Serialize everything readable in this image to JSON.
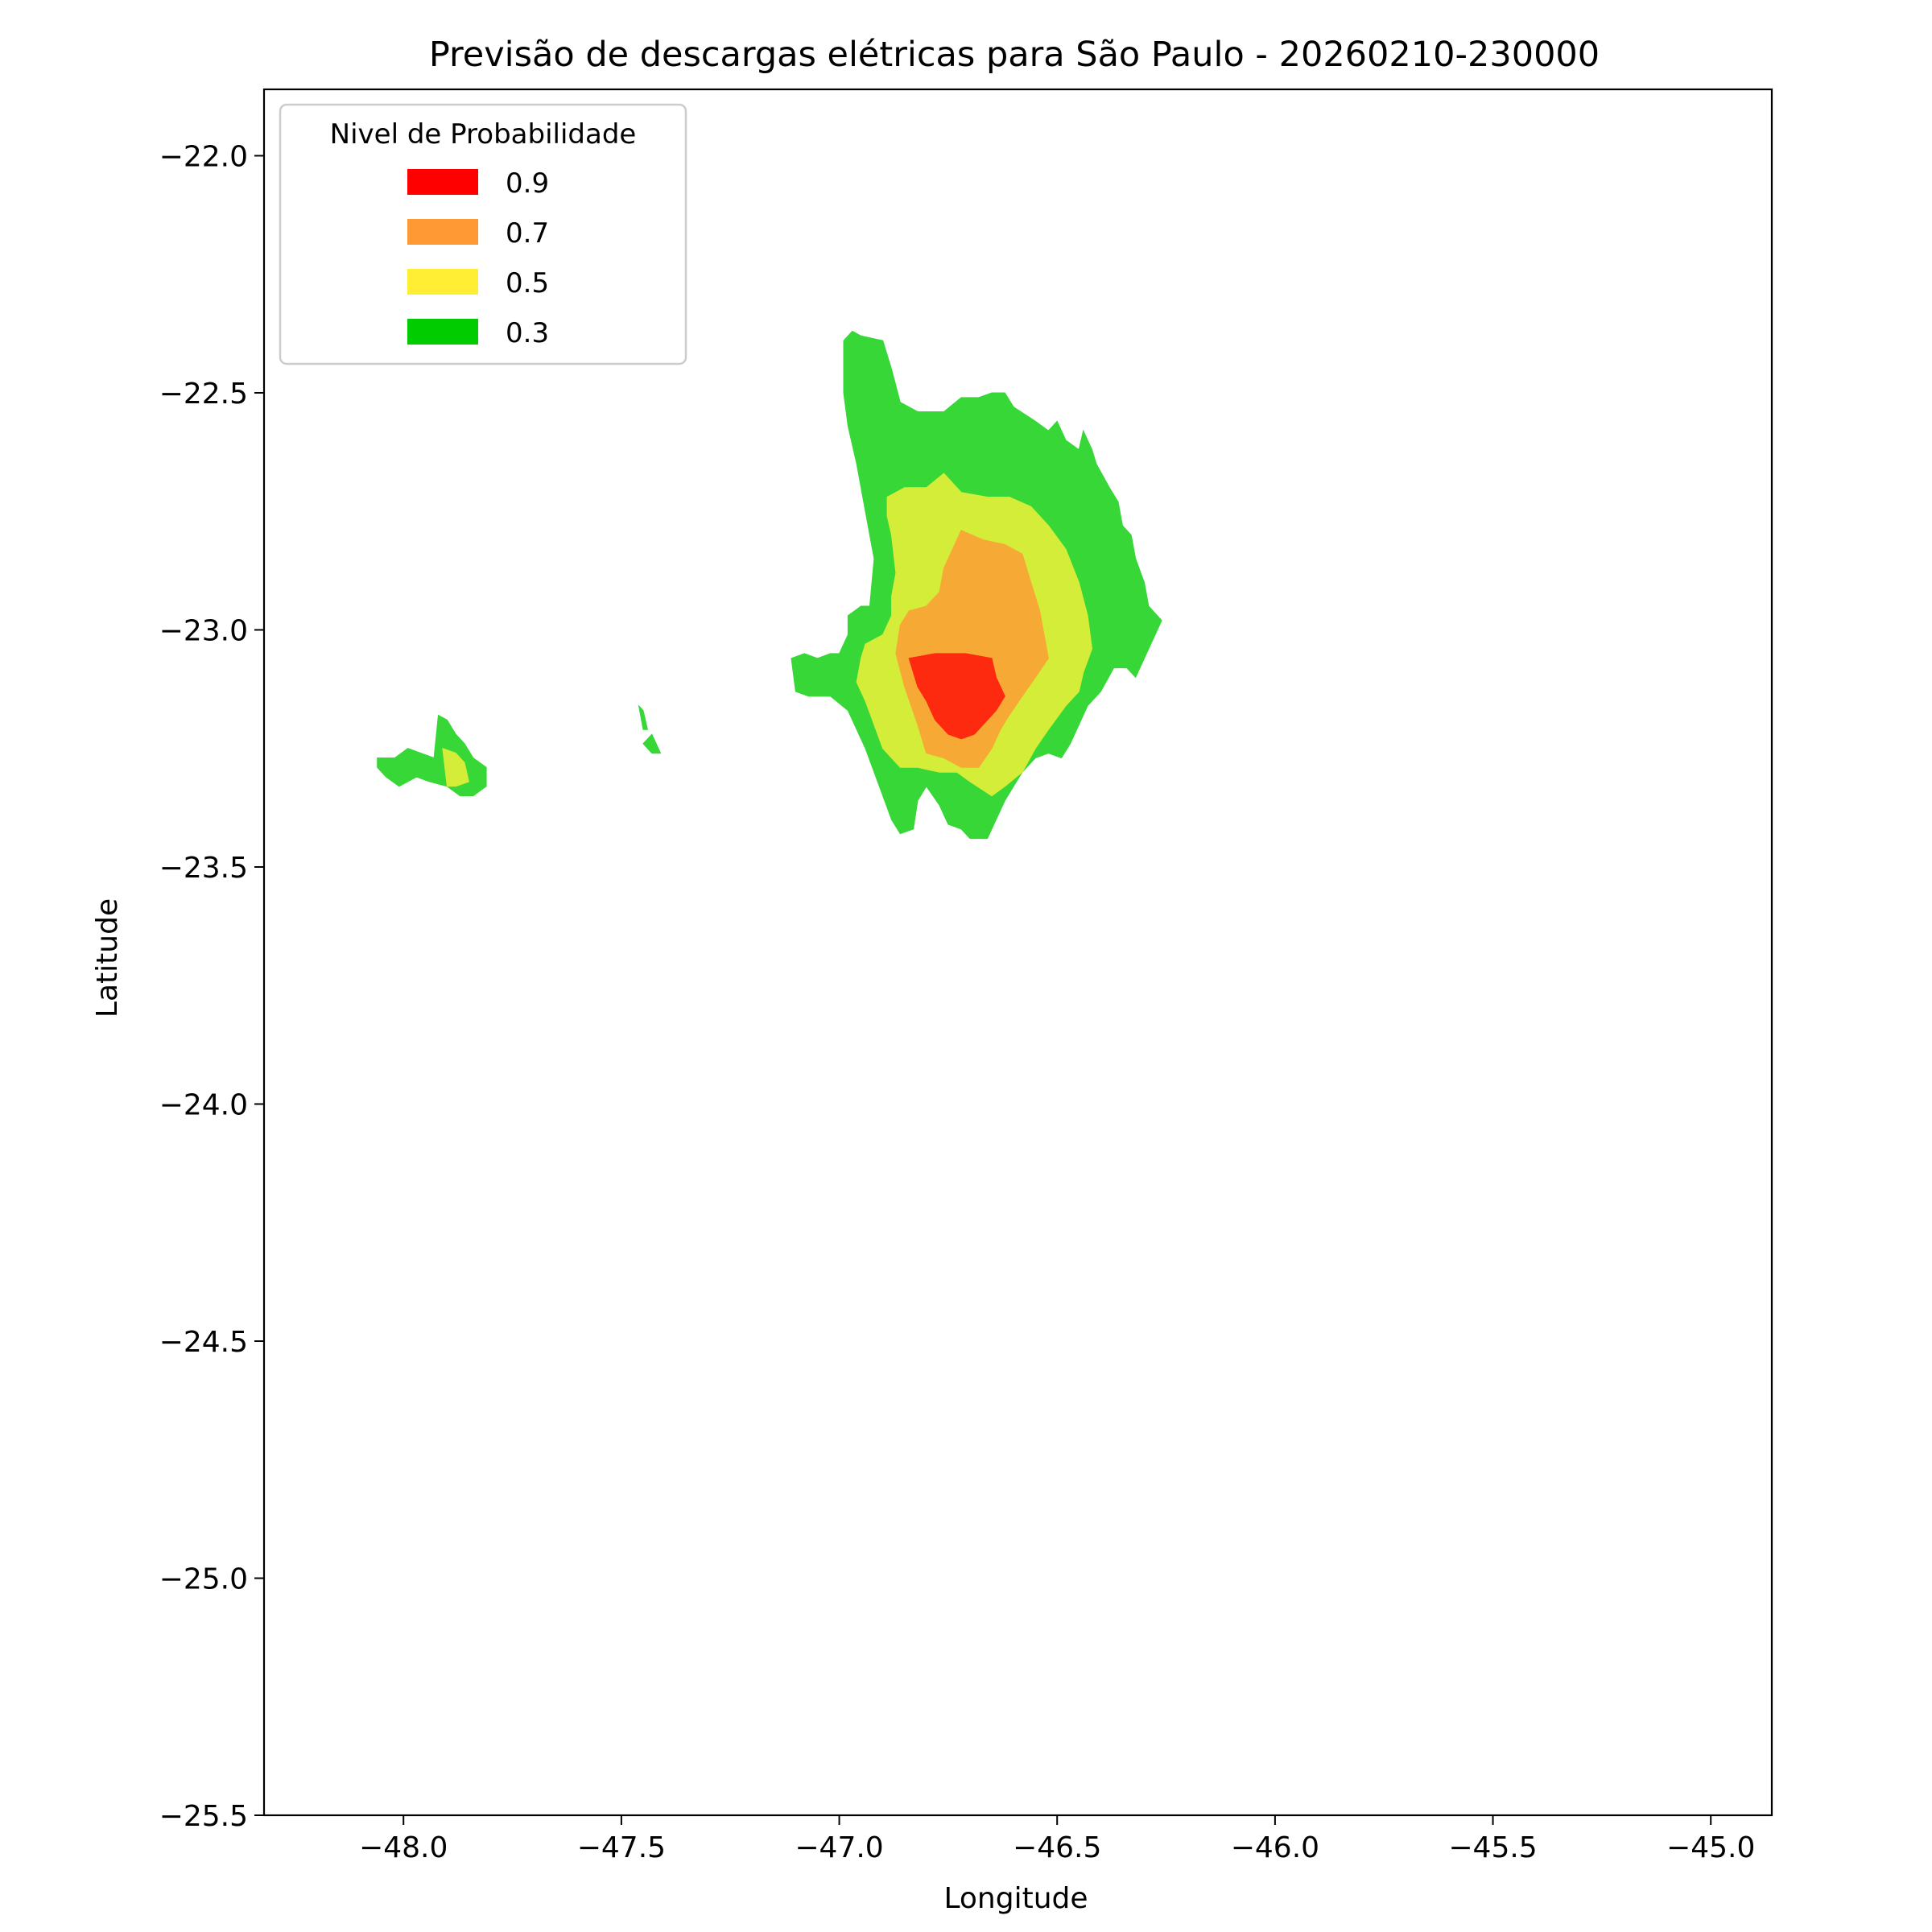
{
  "chart_data": {
    "type": "filled-contour",
    "title": "Previsão de descargas elétricas para São Paulo - 20260210-230000",
    "xlabel": "Longitude",
    "ylabel": "Latitude",
    "xlim": [
      -48.32,
      -44.86
    ],
    "ylim": [
      -25.5,
      -21.86
    ],
    "xticks": [
      -48.0,
      -47.5,
      -47.0,
      -46.5,
      -46.0,
      -45.5,
      -45.0
    ],
    "xtick_labels": [
      "−48.0",
      "−47.5",
      "−47.0",
      "−46.5",
      "−46.0",
      "−45.5",
      "−45.0"
    ],
    "yticks": [
      -22.0,
      -22.5,
      -23.0,
      -23.5,
      -24.0,
      -24.5,
      -25.0,
      -25.5
    ],
    "ytick_labels": [
      "−22.0",
      "−22.5",
      "−23.0",
      "−23.5",
      "−24.0",
      "−24.5",
      "−25.0",
      "−25.5"
    ],
    "grid": false,
    "legend": {
      "title": "Nivel de Probabilidade",
      "position": "top-left",
      "entries": [
        {
          "label": "0.9",
          "color": "#ff0000"
        },
        {
          "label": "0.7",
          "color": "#ff9933"
        },
        {
          "label": "0.5",
          "color": "#ffee33"
        },
        {
          "label": "0.3",
          "color": "#00cc00"
        }
      ]
    },
    "regions": [
      {
        "level": "0.3",
        "color": "#36d736",
        "polygons": [
          [
            [
              -46.99,
              -22.39
            ],
            [
              -46.97,
              -22.37
            ],
            [
              -46.95,
              -22.38
            ],
            [
              -46.9,
              -22.39
            ],
            [
              -46.88,
              -22.45
            ],
            [
              -46.86,
              -22.52
            ],
            [
              -46.82,
              -22.54
            ],
            [
              -46.76,
              -22.54
            ],
            [
              -46.72,
              -22.51
            ],
            [
              -46.68,
              -22.51
            ],
            [
              -46.65,
              -22.5
            ],
            [
              -46.62,
              -22.5
            ],
            [
              -46.6,
              -22.53
            ],
            [
              -46.55,
              -22.56
            ],
            [
              -46.52,
              -22.58
            ],
            [
              -46.5,
              -22.56
            ],
            [
              -46.48,
              -22.6
            ],
            [
              -46.45,
              -22.62
            ],
            [
              -46.44,
              -22.58
            ],
            [
              -46.42,
              -22.62
            ],
            [
              -46.41,
              -22.65
            ],
            [
              -46.38,
              -22.7
            ],
            [
              -46.36,
              -22.73
            ],
            [
              -46.35,
              -22.78
            ],
            [
              -46.33,
              -22.8
            ],
            [
              -46.32,
              -22.85
            ],
            [
              -46.3,
              -22.9
            ],
            [
              -46.29,
              -22.95
            ],
            [
              -46.26,
              -22.98
            ],
            [
              -46.28,
              -23.02
            ],
            [
              -46.3,
              -23.06
            ],
            [
              -46.32,
              -23.1
            ],
            [
              -46.34,
              -23.08
            ],
            [
              -46.37,
              -23.08
            ],
            [
              -46.4,
              -23.13
            ],
            [
              -46.43,
              -23.16
            ],
            [
              -46.45,
              -23.2
            ],
            [
              -46.47,
              -23.24
            ],
            [
              -46.49,
              -23.27
            ],
            [
              -46.52,
              -23.26
            ],
            [
              -46.55,
              -23.27
            ],
            [
              -46.58,
              -23.3
            ],
            [
              -46.6,
              -23.33
            ],
            [
              -46.62,
              -23.36
            ],
            [
              -46.64,
              -23.4
            ],
            [
              -46.66,
              -23.44
            ],
            [
              -46.7,
              -23.44
            ],
            [
              -46.72,
              -23.42
            ],
            [
              -46.75,
              -23.41
            ],
            [
              -46.77,
              -23.37
            ],
            [
              -46.8,
              -23.33
            ],
            [
              -46.82,
              -23.36
            ],
            [
              -46.83,
              -23.42
            ],
            [
              -46.86,
              -23.43
            ],
            [
              -46.88,
              -23.4
            ],
            [
              -46.9,
              -23.35
            ],
            [
              -46.92,
              -23.3
            ],
            [
              -46.94,
              -23.25
            ],
            [
              -46.96,
              -23.21
            ],
            [
              -46.98,
              -23.17
            ],
            [
              -47.02,
              -23.14
            ],
            [
              -47.07,
              -23.14
            ],
            [
              -47.1,
              -23.13
            ],
            [
              -47.11,
              -23.06
            ],
            [
              -47.08,
              -23.05
            ],
            [
              -47.05,
              -23.06
            ],
            [
              -47.02,
              -23.05
            ],
            [
              -47.0,
              -23.05
            ],
            [
              -46.98,
              -23.01
            ],
            [
              -46.98,
              -22.97
            ],
            [
              -46.95,
              -22.95
            ],
            [
              -46.93,
              -22.95
            ],
            [
              -46.92,
              -22.85
            ],
            [
              -46.94,
              -22.75
            ],
            [
              -46.96,
              -22.65
            ],
            [
              -46.98,
              -22.57
            ],
            [
              -46.99,
              -22.5
            ]
          ],
          [
            [
              -48.06,
              -23.27
            ],
            [
              -48.02,
              -23.27
            ],
            [
              -47.99,
              -23.25
            ],
            [
              -47.96,
              -23.26
            ],
            [
              -47.93,
              -23.27
            ],
            [
              -47.92,
              -23.18
            ],
            [
              -47.9,
              -23.19
            ],
            [
              -47.88,
              -23.22
            ],
            [
              -47.86,
              -23.24
            ],
            [
              -47.84,
              -23.27
            ],
            [
              -47.81,
              -23.29
            ],
            [
              -47.81,
              -23.33
            ],
            [
              -47.84,
              -23.35
            ],
            [
              -47.87,
              -23.35
            ],
            [
              -47.9,
              -23.33
            ],
            [
              -47.94,
              -23.32
            ],
            [
              -47.97,
              -23.31
            ],
            [
              -48.01,
              -23.33
            ],
            [
              -48.04,
              -23.31
            ],
            [
              -48.06,
              -23.29
            ]
          ],
          [
            [
              -47.46,
              -23.16
            ],
            [
              -47.45,
              -23.17
            ],
            [
              -47.44,
              -23.21
            ],
            [
              -47.45,
              -23.21
            ]
          ],
          [
            [
              -47.45,
              -23.24
            ],
            [
              -47.43,
              -23.26
            ],
            [
              -47.41,
              -23.26
            ],
            [
              -47.43,
              -23.22
            ]
          ]
        ]
      },
      {
        "level": "0.5",
        "color": "#d4ed38",
        "polygons": [
          [
            [
              -46.89,
              -22.72
            ],
            [
              -46.85,
              -22.7
            ],
            [
              -46.8,
              -22.7
            ],
            [
              -46.76,
              -22.67
            ],
            [
              -46.72,
              -22.71
            ],
            [
              -46.66,
              -22.72
            ],
            [
              -46.61,
              -22.72
            ],
            [
              -46.56,
              -22.74
            ],
            [
              -46.52,
              -22.78
            ],
            [
              -46.48,
              -22.83
            ],
            [
              -46.45,
              -22.9
            ],
            [
              -46.43,
              -22.97
            ],
            [
              -46.42,
              -23.04
            ],
            [
              -46.44,
              -23.09
            ],
            [
              -46.45,
              -23.13
            ],
            [
              -46.48,
              -23.16
            ],
            [
              -46.52,
              -23.21
            ],
            [
              -46.55,
              -23.25
            ],
            [
              -46.58,
              -23.3
            ],
            [
              -46.62,
              -23.33
            ],
            [
              -46.65,
              -23.35
            ],
            [
              -46.7,
              -23.32
            ],
            [
              -46.73,
              -23.3
            ],
            [
              -46.77,
              -23.3
            ],
            [
              -46.82,
              -23.29
            ],
            [
              -46.86,
              -23.29
            ],
            [
              -46.9,
              -23.25
            ],
            [
              -46.92,
              -23.2
            ],
            [
              -46.94,
              -23.15
            ],
            [
              -46.96,
              -23.11
            ],
            [
              -46.95,
              -23.06
            ],
            [
              -46.94,
              -23.03
            ],
            [
              -46.9,
              -23.01
            ],
            [
              -46.88,
              -22.97
            ],
            [
              -46.88,
              -22.93
            ],
            [
              -46.87,
              -22.88
            ],
            [
              -46.88,
              -22.8
            ],
            [
              -46.89,
              -22.76
            ]
          ],
          [
            [
              -47.91,
              -23.25
            ],
            [
              -47.88,
              -23.26
            ],
            [
              -47.86,
              -23.28
            ],
            [
              -47.85,
              -23.32
            ],
            [
              -47.88,
              -23.33
            ],
            [
              -47.9,
              -23.33
            ]
          ]
        ]
      },
      {
        "level": "0.7",
        "color": "#f7a936",
        "polygons": [
          [
            [
              -46.72,
              -22.79
            ],
            [
              -46.67,
              -22.81
            ],
            [
              -46.62,
              -22.82
            ],
            [
              -46.58,
              -22.84
            ],
            [
              -46.56,
              -22.9
            ],
            [
              -46.54,
              -22.96
            ],
            [
              -46.53,
              -23.01
            ],
            [
              -46.52,
              -23.06
            ],
            [
              -46.55,
              -23.1
            ],
            [
              -46.58,
              -23.14
            ],
            [
              -46.61,
              -23.18
            ],
            [
              -46.63,
              -23.21
            ],
            [
              -46.65,
              -23.25
            ],
            [
              -46.68,
              -23.29
            ],
            [
              -46.72,
              -23.29
            ],
            [
              -46.76,
              -23.27
            ],
            [
              -46.8,
              -23.26
            ],
            [
              -46.82,
              -23.2
            ],
            [
              -46.85,
              -23.12
            ],
            [
              -46.87,
              -23.05
            ],
            [
              -46.86,
              -22.99
            ],
            [
              -46.84,
              -22.96
            ],
            [
              -46.8,
              -22.95
            ],
            [
              -46.77,
              -22.92
            ],
            [
              -46.76,
              -22.87
            ],
            [
              -46.74,
              -22.83
            ]
          ]
        ]
      },
      {
        "level": "0.9",
        "color": "#fd2a10",
        "polygons": [
          [
            [
              -46.84,
              -23.06
            ],
            [
              -46.78,
              -23.05
            ],
            [
              -46.71,
              -23.05
            ],
            [
              -46.65,
              -23.06
            ],
            [
              -46.64,
              -23.1
            ],
            [
              -46.62,
              -23.14
            ],
            [
              -46.64,
              -23.17
            ],
            [
              -46.67,
              -23.2
            ],
            [
              -46.69,
              -23.22
            ],
            [
              -46.72,
              -23.23
            ],
            [
              -46.75,
              -23.22
            ],
            [
              -46.78,
              -23.19
            ],
            [
              -46.8,
              -23.15
            ],
            [
              -46.82,
              -23.12
            ]
          ]
        ]
      }
    ]
  }
}
